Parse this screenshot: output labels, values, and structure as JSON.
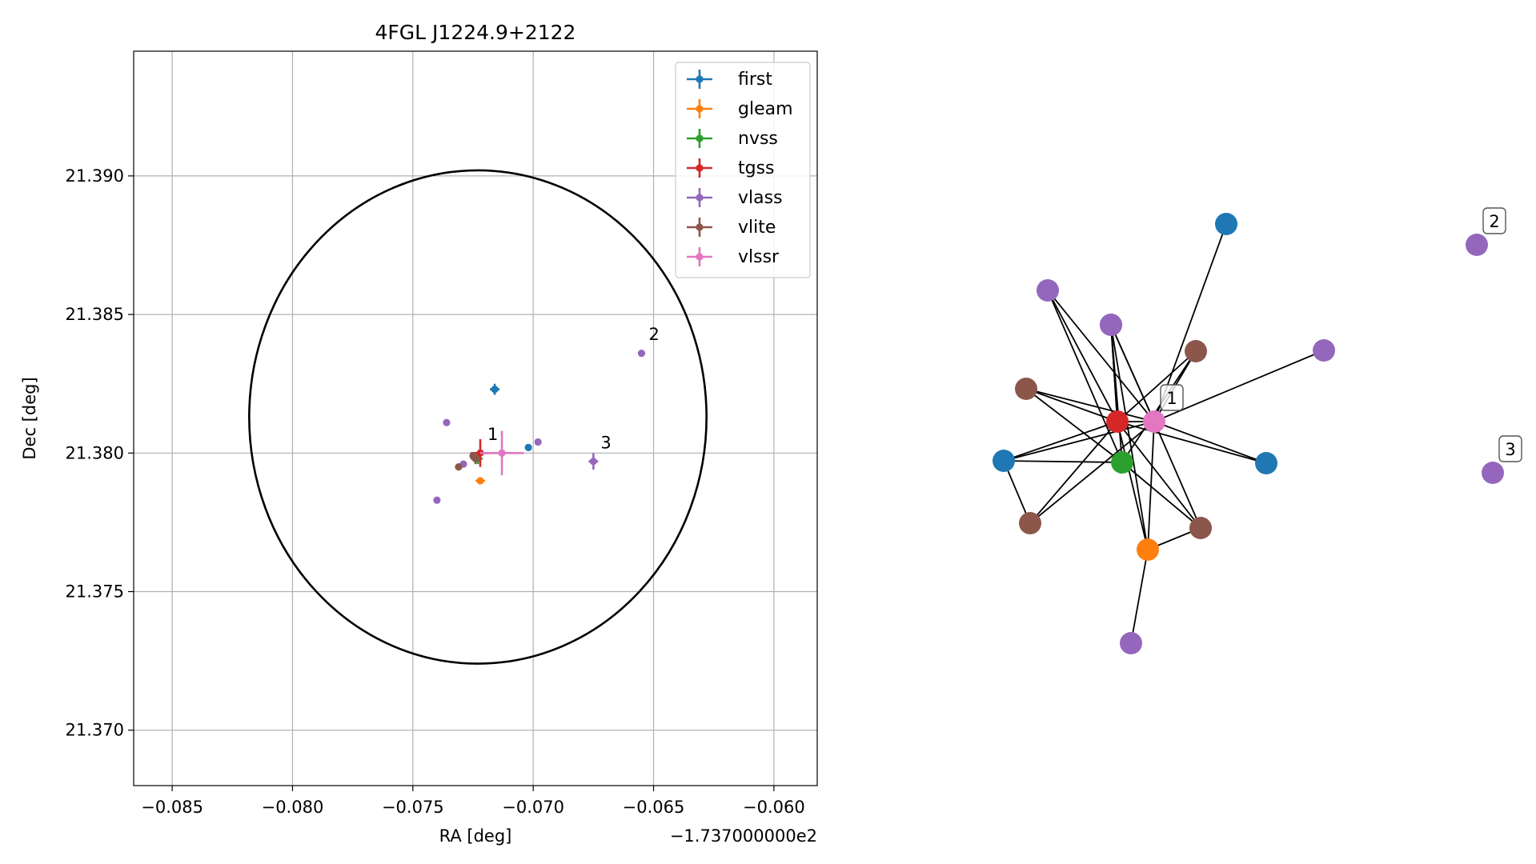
{
  "chart_data": [
    {
      "type": "scatter",
      "title": "4FGL J1224.9+2122",
      "xlabel": "RA [deg]",
      "ylabel": "Dec [deg]",
      "x_offset_label": "−1.737000000e2",
      "xlim": [
        -0.0866,
        -0.0582
      ],
      "ylim": [
        21.368,
        21.3945
      ],
      "xticks": [
        -0.085,
        -0.08,
        -0.075,
        -0.07,
        -0.065,
        -0.06
      ],
      "xtick_labels": [
        "−0.085",
        "−0.080",
        "−0.075",
        "−0.070",
        "−0.065",
        "−0.060"
      ],
      "yticks": [
        21.37,
        21.375,
        21.38,
        21.385,
        21.39
      ],
      "ytick_labels": [
        "21.370",
        "21.375",
        "21.380",
        "21.385",
        "21.390"
      ],
      "grid": true,
      "legend_position": "top-right",
      "circle": {
        "center": [
          -0.0723,
          21.3813
        ],
        "radius_x": 0.0095,
        "radius_y": 0.0089,
        "color": "#000000"
      },
      "series": [
        {
          "name": "first",
          "color": "#1f77b4",
          "points": [
            {
              "x": -0.0716,
              "y": 21.3823,
              "xerr": 0.0002,
              "yerr": 0.0002
            },
            {
              "x": -0.0702,
              "y": 21.3802,
              "xerr": 0.0,
              "yerr": 0.0
            }
          ]
        },
        {
          "name": "gleam",
          "color": "#ff7f0e",
          "points": [
            {
              "x": -0.0722,
              "y": 21.379,
              "xerr": 0.0002,
              "yerr": 0.0001
            }
          ]
        },
        {
          "name": "nvss",
          "color": "#2ca02c",
          "points": [
            {
              "x": -0.0723,
              "y": 21.3798,
              "xerr": 0.0002,
              "yerr": 0.0002
            }
          ]
        },
        {
          "name": "tgss",
          "color": "#d62728",
          "points": [
            {
              "x": -0.0722,
              "y": 21.38,
              "xerr": 0.0004,
              "yerr": 0.0005
            }
          ]
        },
        {
          "name": "vlass",
          "color": "#9467bd",
          "points": [
            {
              "x": -0.0655,
              "y": 21.3836,
              "xerr": 0.0,
              "yerr": 0.0
            },
            {
              "x": -0.0736,
              "y": 21.3811,
              "xerr": 0.0,
              "yerr": 0.0
            },
            {
              "x": -0.0698,
              "y": 21.3804,
              "xerr": 0.0,
              "yerr": 0.0
            },
            {
              "x": -0.0675,
              "y": 21.3797,
              "xerr": 0.0002,
              "yerr": 0.0003
            },
            {
              "x": -0.0729,
              "y": 21.3796,
              "xerr": 0.0,
              "yerr": 0.0
            },
            {
              "x": -0.074,
              "y": 21.3783,
              "xerr": 0.0,
              "yerr": 0.0
            }
          ]
        },
        {
          "name": "vlite",
          "color": "#8c564b",
          "points": [
            {
              "x": -0.0724,
              "y": 21.3798,
              "xerr": 0.0002,
              "yerr": 0.0002
            },
            {
              "x": -0.0731,
              "y": 21.3795,
              "xerr": 0.0,
              "yerr": 0.0
            },
            {
              "x": -0.0725,
              "y": 21.3799,
              "xerr": 0.0,
              "yerr": 0.0
            }
          ]
        },
        {
          "name": "vlssr",
          "color": "#e377c2",
          "points": [
            {
              "x": -0.0713,
              "y": 21.38,
              "xerr": 0.0009,
              "yerr": 0.0008
            }
          ]
        }
      ],
      "annotations": [
        {
          "text": "1",
          "x": -0.0721,
          "y": 21.3803
        },
        {
          "text": "2",
          "x": -0.0654,
          "y": 21.3839
        },
        {
          "text": "3",
          "x": -0.0674,
          "y": 21.38
        }
      ]
    },
    {
      "type": "network",
      "nodes": [
        {
          "id": "n0",
          "color": "#9467bd",
          "pos": [
            0.0,
            0.0
          ]
        },
        {
          "id": "n1",
          "color": "#9467bd",
          "pos": [
            0.0,
            0.0
          ]
        },
        {
          "id": "n2",
          "color": "#1f77b4",
          "pos": [
            0.0,
            0.0
          ]
        },
        {
          "id": "n3",
          "color": "#9467bd",
          "pos": [
            0.0,
            0.0
          ]
        },
        {
          "id": "n4",
          "color": "#8c564b",
          "pos": [
            0.0,
            0.0
          ]
        },
        {
          "id": "n5",
          "color": "#9467bd",
          "pos": [
            0.0,
            0.0
          ]
        },
        {
          "id": "n6",
          "color": "#8c564b",
          "pos": [
            0.0,
            0.0
          ]
        },
        {
          "id": "n7",
          "color": "#d62728",
          "pos": [
            0.0,
            0.0
          ]
        },
        {
          "id": "n8",
          "color": "#e377c2",
          "pos": [
            0.0,
            0.0
          ],
          "label": "1"
        },
        {
          "id": "n9",
          "color": "#1f77b4",
          "pos": [
            0.0,
            0.0
          ]
        },
        {
          "id": "n10",
          "color": "#2ca02c",
          "pos": [
            0.0,
            0.0
          ]
        },
        {
          "id": "n11",
          "color": "#1f77b4",
          "pos": [
            0.0,
            0.0
          ]
        },
        {
          "id": "n12",
          "color": "#8c564b",
          "pos": [
            0.0,
            0.0
          ]
        },
        {
          "id": "n13",
          "color": "#8c564b",
          "pos": [
            0.0,
            0.0
          ]
        },
        {
          "id": "n14",
          "color": "#ff7f0e",
          "pos": [
            0.0,
            0.0
          ]
        },
        {
          "id": "n15",
          "color": "#9467bd",
          "pos": [
            0.0,
            0.0
          ]
        },
        {
          "id": "n16",
          "color": "#9467bd",
          "pos": [
            0.0,
            0.0
          ],
          "label": "2"
        },
        {
          "id": "n17",
          "color": "#9467bd",
          "pos": [
            0.0,
            0.0
          ],
          "label": "3"
        }
      ],
      "edges": [
        [
          "n0",
          "n7"
        ],
        [
          "n0",
          "n8"
        ],
        [
          "n0",
          "n10"
        ],
        [
          "n1",
          "n7"
        ],
        [
          "n1",
          "n8"
        ],
        [
          "n1",
          "n10"
        ],
        [
          "n2",
          "n8"
        ],
        [
          "n3",
          "n8"
        ],
        [
          "n4",
          "n7"
        ],
        [
          "n4",
          "n8"
        ],
        [
          "n4",
          "n10"
        ],
        [
          "n5",
          "n7"
        ],
        [
          "n5",
          "n8"
        ],
        [
          "n5",
          "n14"
        ],
        [
          "n6",
          "n7"
        ],
        [
          "n6",
          "n8"
        ],
        [
          "n6",
          "n10"
        ],
        [
          "n7",
          "n8"
        ],
        [
          "n7",
          "n9"
        ],
        [
          "n7",
          "n11"
        ],
        [
          "n7",
          "n12"
        ],
        [
          "n7",
          "n13"
        ],
        [
          "n7",
          "n14"
        ],
        [
          "n8",
          "n9"
        ],
        [
          "n8",
          "n11"
        ],
        [
          "n8",
          "n12"
        ],
        [
          "n8",
          "n13"
        ],
        [
          "n8",
          "n14"
        ],
        [
          "n9",
          "n12"
        ],
        [
          "n9",
          "n10"
        ],
        [
          "n10",
          "n13"
        ],
        [
          "n13",
          "n14"
        ],
        [
          "n14",
          "n15"
        ]
      ]
    }
  ]
}
